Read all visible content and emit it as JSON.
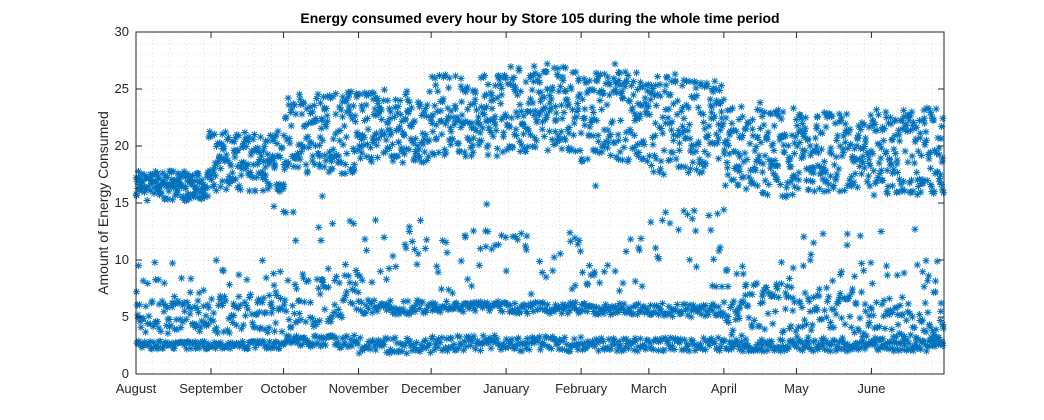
{
  "chart_data": {
    "type": "scatter",
    "title": "Energy consumed every hour by Store 105 during the whole time period",
    "xlabel": "",
    "ylabel": "Amount of Energy Consumed",
    "xlim": [
      0,
      334
    ],
    "ylim": [
      0,
      30
    ],
    "x_unit": "day index from August 1",
    "x_ticks": [
      {
        "x": 0,
        "label": "August"
      },
      {
        "x": 31,
        "label": "September"
      },
      {
        "x": 61,
        "label": "October"
      },
      {
        "x": 92,
        "label": "November"
      },
      {
        "x": 122,
        "label": "December"
      },
      {
        "x": 153,
        "label": "January"
      },
      {
        "x": 184,
        "label": "February"
      },
      {
        "x": 212,
        "label": "March"
      },
      {
        "x": 243,
        "label": "April"
      },
      {
        "x": 273,
        "label": "May"
      },
      {
        "x": 304,
        "label": "June"
      }
    ],
    "y_ticks": [
      0,
      5,
      10,
      15,
      20,
      25,
      30
    ],
    "grid": "dotted",
    "marker": "asterisk",
    "series": [
      {
        "name": "",
        "color": "#0072BD",
        "segments": [
          {
            "x_range": [
              0,
              30
            ],
            "day": [
              15.2,
              17.8
            ],
            "mid": [
              3.5,
              6.5
            ],
            "low": [
              2.2,
              2.9
            ],
            "sparse": [
              4.5,
              9.8
            ]
          },
          {
            "x_range": [
              30,
              61
            ],
            "day": [
              16.0,
              21.5
            ],
            "mid": [
              3.5,
              7.0
            ],
            "low": [
              2.2,
              2.9
            ],
            "sparse": [
              5.0,
              10.0
            ]
          },
          {
            "x_range": [
              61,
              92
            ],
            "day": [
              17.5,
              24.8
            ],
            "mid": [
              4.0,
              8.8
            ],
            "low": [
              2.3,
              3.4
            ],
            "sparse": [
              6.0,
              14.5
            ]
          },
          {
            "x_range": [
              92,
              122
            ],
            "day": [
              18.5,
              25.0
            ],
            "mid": [
              5.2,
              6.5
            ],
            "low": [
              1.8,
              3.2
            ],
            "sparse": [
              7.5,
              13.5
            ]
          },
          {
            "x_range": [
              122,
              153
            ],
            "day": [
              19.0,
              26.3
            ],
            "mid": [
              5.4,
              6.4
            ],
            "low": [
              2.0,
              3.4
            ],
            "sparse": [
              7.0,
              12.8
            ]
          },
          {
            "x_range": [
              153,
              184
            ],
            "day": [
              19.5,
              27.0
            ],
            "mid": [
              5.3,
              6.3
            ],
            "low": [
              2.0,
              3.3
            ],
            "sparse": [
              7.0,
              12.5
            ]
          },
          {
            "x_range": [
              184,
              212
            ],
            "day": [
              18.5,
              26.5
            ],
            "mid": [
              5.2,
              6.2
            ],
            "low": [
              2.0,
              3.2
            ],
            "sparse": [
              6.5,
              12.0
            ]
          },
          {
            "x_range": [
              212,
              243
            ],
            "day": [
              17.5,
              26.5
            ],
            "mid": [
              5.0,
              6.2
            ],
            "low": [
              2.0,
              3.2
            ],
            "sparse": [
              6.0,
              14.5
            ]
          },
          {
            "x_range": [
              243,
              273
            ],
            "day": [
              15.5,
              23.5
            ],
            "mid": [
              3.0,
              8.0
            ],
            "low": [
              2.0,
              3.0
            ],
            "sparse": [
              5.0,
              10.0
            ]
          },
          {
            "x_range": [
              273,
              304
            ],
            "day": [
              16.0,
              23.0
            ],
            "mid": [
              3.0,
              7.5
            ],
            "low": [
              2.0,
              3.0
            ],
            "sparse": [
              5.0,
              12.5
            ]
          },
          {
            "x_range": [
              304,
              334
            ],
            "day": [
              15.5,
              23.5
            ],
            "mid": [
              3.0,
              6.5
            ],
            "low": [
              2.0,
              3.0
            ],
            "sparse": [
              5.0,
              10.0
            ]
          }
        ],
        "points": [
          {
            "x": 88,
            "y": 23.5
          },
          {
            "x": 99,
            "y": 13.5
          },
          {
            "x": 113,
            "y": 12.5
          },
          {
            "x": 145,
            "y": 14.9
          },
          {
            "x": 165,
            "y": 26.4
          },
          {
            "x": 170,
            "y": 27.2
          },
          {
            "x": 190,
            "y": 16.5
          },
          {
            "x": 198,
            "y": 27.2
          },
          {
            "x": 228,
            "y": 14.0
          },
          {
            "x": 243,
            "y": 14.4
          },
          {
            "x": 258,
            "y": 23.8
          },
          {
            "x": 284,
            "y": 12.3
          },
          {
            "x": 308,
            "y": 12.5
          },
          {
            "x": 322,
            "y": 12.7
          },
          {
            "x": 65,
            "y": 14.2
          },
          {
            "x": 66,
            "y": 11.7
          },
          {
            "x": 57,
            "y": 14.7
          },
          {
            "x": 77,
            "y": 15.6
          },
          {
            "x": 329,
            "y": 16.0
          },
          {
            "x": 333,
            "y": 21.7
          },
          {
            "x": 279,
            "y": 10.5
          },
          {
            "x": 241,
            "y": 10.8
          }
        ]
      }
    ]
  }
}
